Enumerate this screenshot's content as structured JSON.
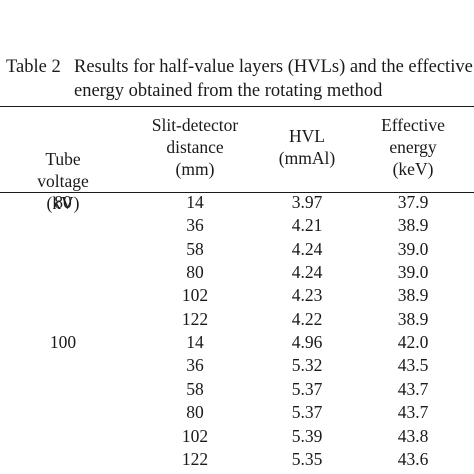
{
  "caption": {
    "label": "Table 2",
    "line1": "Results for half-value layers (HVLs) and the effective",
    "line2": "energy obtained from the rotating method"
  },
  "columns": [
    {
      "lines": [
        "Tube voltage",
        "(kV)"
      ]
    },
    {
      "lines": [
        "Slit-detector",
        "distance",
        "(mm)"
      ]
    },
    {
      "lines": [
        "HVL",
        "(mmAl)"
      ]
    },
    {
      "lines": [
        "Effective",
        "energy",
        "(keV)"
      ]
    }
  ],
  "rows": [
    {
      "tube": "80",
      "distance": "14",
      "hvl": "3.97",
      "energy": "37.9"
    },
    {
      "tube": "",
      "distance": "36",
      "hvl": "4.21",
      "energy": "38.9"
    },
    {
      "tube": "",
      "distance": "58",
      "hvl": "4.24",
      "energy": "39.0"
    },
    {
      "tube": "",
      "distance": "80",
      "hvl": "4.24",
      "energy": "39.0"
    },
    {
      "tube": "",
      "distance": "102",
      "hvl": "4.23",
      "energy": "38.9"
    },
    {
      "tube": "",
      "distance": "122",
      "hvl": "4.22",
      "energy": "38.9"
    },
    {
      "tube": "100",
      "distance": "14",
      "hvl": "4.96",
      "energy": "42.0"
    },
    {
      "tube": "",
      "distance": "36",
      "hvl": "5.32",
      "energy": "43.5"
    },
    {
      "tube": "",
      "distance": "58",
      "hvl": "5.37",
      "energy": "43.7"
    },
    {
      "tube": "",
      "distance": "80",
      "hvl": "5.37",
      "energy": "43.7"
    },
    {
      "tube": "",
      "distance": "102",
      "hvl": "5.39",
      "energy": "43.8"
    },
    {
      "tube": "",
      "distance": "122",
      "hvl": "5.35",
      "energy": "43.6"
    }
  ]
}
